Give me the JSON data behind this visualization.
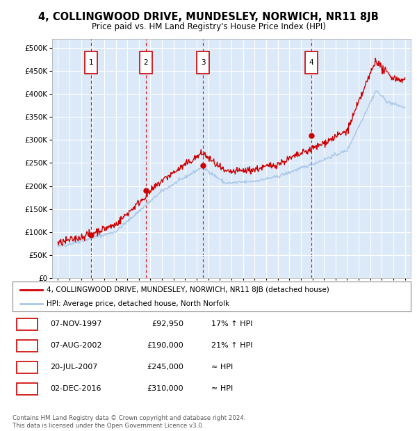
{
  "title": "4, COLLINGWOOD DRIVE, MUNDESLEY, NORWICH, NR11 8JB",
  "subtitle": "Price paid vs. HM Land Registry's House Price Index (HPI)",
  "legend_line1": "4, COLLINGWOOD DRIVE, MUNDESLEY, NORWICH, NR11 8JB (detached house)",
  "legend_line2": "HPI: Average price, detached house, North Norfolk",
  "footer_line1": "Contains HM Land Registry data © Crown copyright and database right 2024.",
  "footer_line2": "This data is licensed under the Open Government Licence v3.0.",
  "transactions": [
    {
      "num": 1,
      "date": "07-NOV-1997",
      "price": 92950,
      "rel": "17% ↑ HPI",
      "x_year": 1997.85
    },
    {
      "num": 2,
      "date": "07-AUG-2002",
      "price": 190000,
      "rel": "21% ↑ HPI",
      "x_year": 2002.6
    },
    {
      "num": 3,
      "date": "20-JUL-2007",
      "price": 245000,
      "rel": "≈ HPI",
      "x_year": 2007.55
    },
    {
      "num": 4,
      "date": "02-DEC-2016",
      "price": 310000,
      "rel": "≈ HPI",
      "x_year": 2016.92
    }
  ],
  "xlim": [
    1994.5,
    2025.5
  ],
  "ylim": [
    0,
    520000
  ],
  "yticks": [
    0,
    50000,
    100000,
    150000,
    200000,
    250000,
    300000,
    350000,
    400000,
    450000,
    500000
  ],
  "plot_bg": "#dce9f8",
  "grid_color": "#ffffff",
  "hpi_color": "#aac8e8",
  "price_color": "#cc0000",
  "vline_color": "#cc0000",
  "box_color": "#cc0000",
  "title_fontsize": 10.5,
  "subtitle_fontsize": 8.5
}
